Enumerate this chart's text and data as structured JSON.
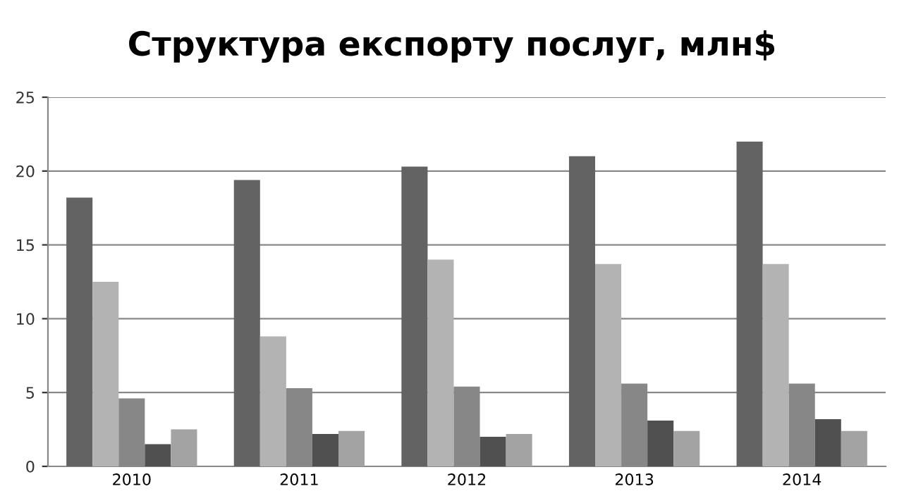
{
  "chart_data": {
    "type": "bar",
    "title": "Структура експорту послуг, млн$",
    "categories": [
      "2010",
      "2011",
      "2012",
      "2013",
      "2014"
    ],
    "series": [
      {
        "color": "#636363",
        "values": [
          18.2,
          19.4,
          20.3,
          21.0,
          22.0
        ]
      },
      {
        "color": "#b3b3b3",
        "values": [
          12.5,
          8.8,
          14.0,
          13.7,
          13.7
        ]
      },
      {
        "color": "#878787",
        "values": [
          4.6,
          5.3,
          5.4,
          5.6,
          5.6
        ]
      },
      {
        "color": "#505050",
        "values": [
          1.5,
          2.2,
          2.0,
          3.1,
          3.2
        ]
      },
      {
        "color": "#a3a3a3",
        "values": [
          2.5,
          2.4,
          2.2,
          2.4,
          2.4
        ]
      }
    ],
    "ylim": [
      0,
      25
    ],
    "yticks": [
      0,
      5,
      10,
      15,
      20,
      25
    ],
    "grid": "y"
  }
}
